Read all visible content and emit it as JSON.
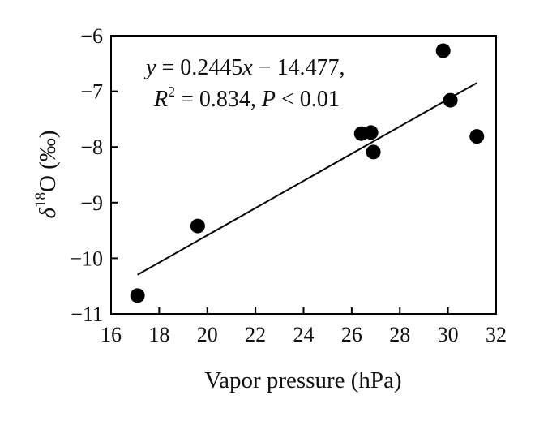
{
  "chart_data": {
    "type": "scatter",
    "xlabel": "Vapor pressure (hPa)",
    "ylabel": {
      "prefix": "δ",
      "superscript": "18",
      "rest": "O (‰)"
    },
    "xlim": [
      16,
      32
    ],
    "ylim": [
      -11,
      -6
    ],
    "x_ticks": [
      16,
      18,
      20,
      22,
      24,
      26,
      28,
      30,
      32
    ],
    "y_ticks": [
      -11,
      -10,
      -9,
      -8,
      -7,
      -6
    ],
    "x_tick_labels": [
      "16",
      "18",
      "20",
      "22",
      "24",
      "26",
      "28",
      "30",
      "32"
    ],
    "y_tick_labels": [
      "−11",
      "−10",
      "−9",
      "−8",
      "−7",
      "−6"
    ],
    "grid": false,
    "legend": "none",
    "marker_color": "#000000",
    "points": [
      {
        "x": 17.1,
        "y": -10.67
      },
      {
        "x": 19.6,
        "y": -9.42
      },
      {
        "x": 26.4,
        "y": -7.76
      },
      {
        "x": 26.8,
        "y": -7.74
      },
      {
        "x": 26.9,
        "y": -8.09
      },
      {
        "x": 29.8,
        "y": -6.27
      },
      {
        "x": 30.1,
        "y": -7.16
      },
      {
        "x": 31.2,
        "y": -7.81
      }
    ],
    "fit_line": {
      "slope": 0.2445,
      "intercept": -14.477,
      "x_range": [
        17.1,
        31.2
      ]
    },
    "annotation": {
      "line1": {
        "y": "y",
        "eq": " = 0.2445",
        "x": "x",
        "rest": " − 14.477,"
      },
      "line2": {
        "r": "R",
        "sup": "2",
        "eq": " = 0.834, ",
        "p": "P",
        "rest": " < 0.01"
      }
    }
  }
}
